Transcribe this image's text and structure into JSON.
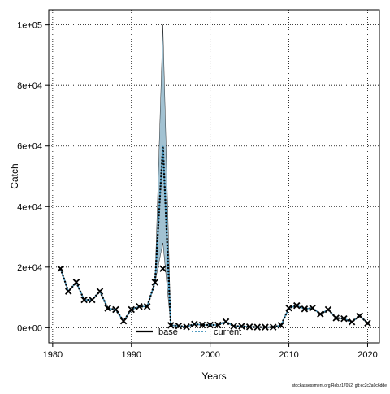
{
  "chart_data": {
    "type": "line",
    "title": "",
    "xlabel": "Years",
    "ylabel": "Catch",
    "xlim": [
      1979.5,
      2021.5
    ],
    "ylim": [
      -5000,
      105000
    ],
    "x_ticks": [
      1980,
      1990,
      2000,
      2010,
      2020
    ],
    "x_tick_labels": [
      "1980",
      "1990",
      "2000",
      "2010",
      "2020"
    ],
    "y_ticks": [
      0,
      20000,
      40000,
      60000,
      80000,
      100000
    ],
    "y_tick_labels": [
      "0e+00",
      "2e+04",
      "4e+04",
      "6e+04",
      "8e+04",
      "1e+05"
    ],
    "grid": true,
    "legend_position": "bottom-center",
    "x": [
      1981,
      1982,
      1983,
      1984,
      1985,
      1986,
      1987,
      1988,
      1989,
      1990,
      1991,
      1992,
      1993,
      1994,
      1995,
      1996,
      1997,
      1998,
      1999,
      2000,
      2001,
      2002,
      2003,
      2004,
      2005,
      2006,
      2007,
      2008,
      2009,
      2010,
      2011,
      2012,
      2013,
      2014,
      2015,
      2016,
      2017,
      2018,
      2019,
      2020
    ],
    "observed": {
      "marker": "x",
      "values": [
        19500,
        12000,
        15000,
        9200,
        9200,
        12000,
        6400,
        6000,
        2200,
        6000,
        7000,
        7000,
        15000,
        19500,
        800,
        600,
        300,
        1200,
        900,
        900,
        900,
        2000,
        500,
        500,
        300,
        200,
        200,
        200,
        800,
        6500,
        7300,
        6200,
        6500,
        4500,
        6000,
        3200,
        3000,
        1900,
        3900,
        1500
      ]
    },
    "series": [
      {
        "name": "base",
        "color": "#000000",
        "values": [
          19500,
          12000,
          15000,
          9200,
          9200,
          12000,
          6400,
          6000,
          2200,
          6000,
          7000,
          7000,
          15000,
          60000,
          800,
          600,
          300,
          1200,
          900,
          900,
          900,
          2000,
          500,
          500,
          300,
          200,
          200,
          200,
          800,
          6500,
          7300,
          6200,
          6500,
          4500,
          6000,
          3200,
          3000,
          1900,
          3900,
          1500
        ]
      },
      {
        "name": "current",
        "color": "#3d8fb8",
        "values": [
          19500,
          12000,
          15000,
          9200,
          9200,
          12000,
          6400,
          6000,
          2200,
          6000,
          7000,
          7000,
          15000,
          60000,
          800,
          600,
          300,
          1200,
          900,
          900,
          900,
          2000,
          500,
          500,
          300,
          200,
          200,
          200,
          800,
          6500,
          7300,
          6200,
          6500,
          4500,
          6000,
          3200,
          3000,
          1900,
          3900,
          1500
        ]
      }
    ],
    "band": {
      "color": "#a2c2d2",
      "lower": [
        19500,
        12000,
        15000,
        9200,
        9200,
        12000,
        6400,
        6000,
        2200,
        6000,
        7000,
        7000,
        15000,
        28000,
        800,
        600,
        300,
        1200,
        900,
        900,
        900,
        2000,
        500,
        500,
        300,
        200,
        200,
        200,
        800,
        6500,
        7300,
        6200,
        6500,
        4500,
        6000,
        3200,
        3000,
        1900,
        3900,
        1500
      ],
      "upper": [
        19500,
        12000,
        15000,
        9200,
        9200,
        12000,
        6400,
        6000,
        2200,
        6000,
        7000,
        7000,
        15000,
        100000,
        800,
        600,
        300,
        1200,
        900,
        900,
        900,
        2000,
        500,
        500,
        300,
        200,
        200,
        200,
        800,
        6500,
        7300,
        6200,
        6500,
        4500,
        6000,
        3200,
        3000,
        1900,
        3900,
        1500
      ]
    }
  },
  "footer": "stockassessment.org,Reb.r17052, git:ec2c2a0c6dde"
}
